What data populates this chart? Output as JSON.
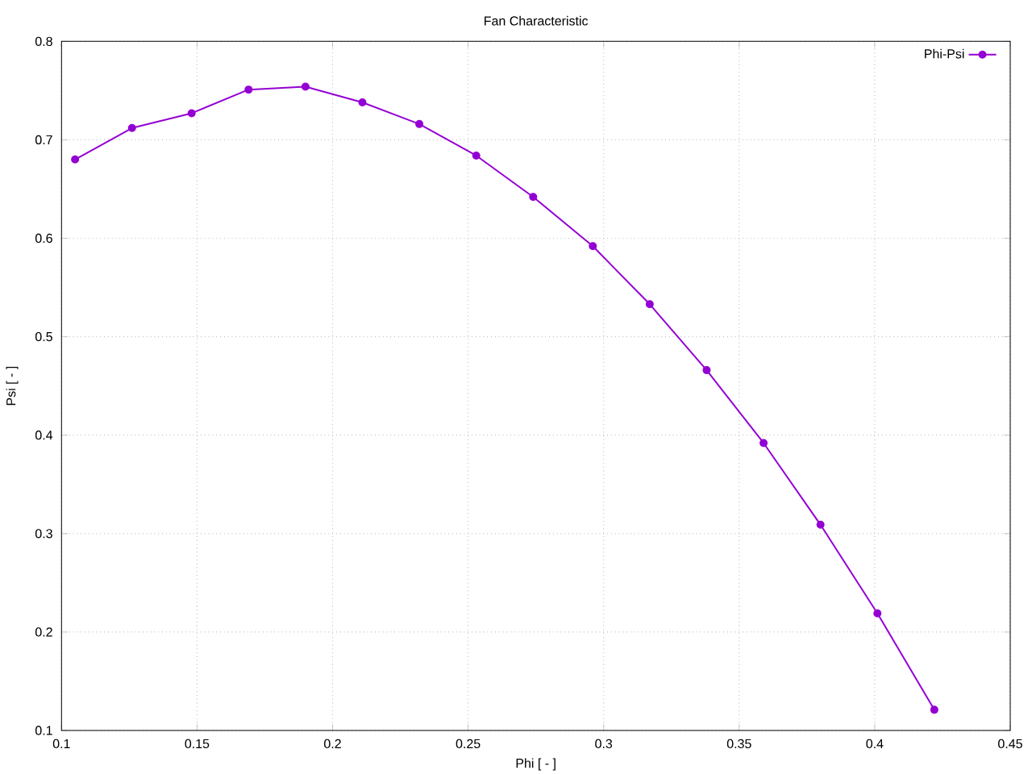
{
  "chart_data": {
    "type": "line",
    "title": "Fan Characteristic",
    "xlabel": "Phi [ - ]",
    "ylabel": "Psi [ - ]",
    "x": [
      0.105,
      0.126,
      0.148,
      0.169,
      0.19,
      0.211,
      0.232,
      0.253,
      0.274,
      0.296,
      0.317,
      0.338,
      0.359,
      0.38,
      0.401,
      0.422
    ],
    "series": [
      {
        "name": "Phi-Psi",
        "color": "#9400d3",
        "values": [
          0.68,
          0.712,
          0.727,
          0.751,
          0.754,
          0.738,
          0.716,
          0.684,
          0.642,
          0.592,
          0.533,
          0.466,
          0.392,
          0.309,
          0.219,
          0.121
        ]
      }
    ],
    "xlim": [
      0.1,
      0.45
    ],
    "ylim": [
      0.1,
      0.8
    ],
    "xticks": [
      0.1,
      0.15,
      0.2,
      0.25,
      0.3,
      0.35,
      0.4,
      0.45
    ],
    "yticks": [
      0.1,
      0.2,
      0.3,
      0.4,
      0.5,
      0.6,
      0.7,
      0.8
    ],
    "grid": true,
    "legend": "top right",
    "marker": "circle",
    "line_style": "solid"
  }
}
